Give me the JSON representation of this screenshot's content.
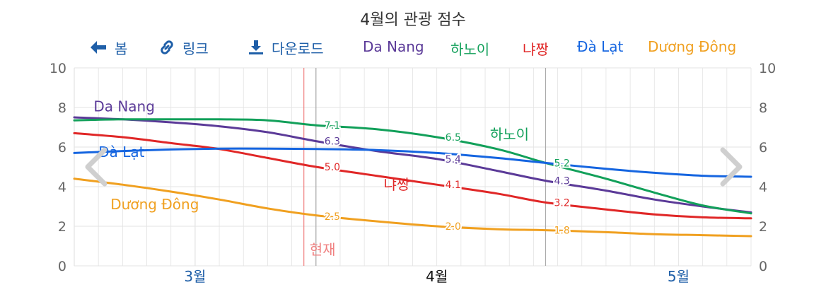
{
  "title": "4월의 관광 점수",
  "toolbar": {
    "back_label": "봄",
    "link_label": "링크",
    "download_label": "다운로드"
  },
  "now_label": "현재",
  "colors": {
    "toolbar": "#1f5fa8",
    "grid": "#e3e3e3",
    "now_line": "#f08080",
    "marker_line": "#aaaaaa"
  },
  "chart_data": {
    "type": "line",
    "title": "4월의 관광 점수",
    "xlabel": "",
    "ylabel": "",
    "ylim": [
      0,
      10
    ],
    "yticks": [
      0,
      2,
      4,
      6,
      8,
      10
    ],
    "x_tick_labels": [
      "3월",
      "4월",
      "5월"
    ],
    "x_tick_positions": [
      3.5,
      4.5,
      5.5
    ],
    "xlim": [
      3.0,
      5.8
    ],
    "now_x": 3.95,
    "marker_x": [
      4.0,
      4.95
    ],
    "grid": true,
    "legend_position": "top",
    "series": [
      {
        "name": "Da Nang",
        "color": "#5b3a98",
        "label_x": 3.08,
        "label_y": 7.8,
        "x": [
          3.0,
          3.2,
          3.4,
          3.6,
          3.8,
          4.0,
          4.25,
          4.5,
          4.75,
          4.95,
          5.2,
          5.4,
          5.6,
          5.8
        ],
        "y": [
          7.5,
          7.4,
          7.25,
          7.05,
          6.75,
          6.3,
          5.8,
          5.4,
          4.8,
          4.3,
          3.8,
          3.35,
          3.0,
          2.7
        ]
      },
      {
        "name": "하노이",
        "color": "#12a05a",
        "label_x": 4.72,
        "label_y": 6.4,
        "x": [
          3.0,
          3.2,
          3.4,
          3.6,
          3.8,
          4.0,
          4.25,
          4.5,
          4.75,
          4.95,
          5.2,
          5.4,
          5.6,
          5.8
        ],
        "y": [
          7.35,
          7.4,
          7.4,
          7.4,
          7.35,
          7.1,
          6.9,
          6.5,
          5.9,
          5.2,
          4.4,
          3.7,
          3.05,
          2.65
        ]
      },
      {
        "name": "냐짱",
        "color": "#e02727",
        "label_x": 4.28,
        "label_y": 3.85,
        "x": [
          3.0,
          3.2,
          3.4,
          3.6,
          3.8,
          4.0,
          4.25,
          4.5,
          4.75,
          4.95,
          5.2,
          5.4,
          5.6,
          5.8
        ],
        "y": [
          6.7,
          6.5,
          6.2,
          5.9,
          5.45,
          5.0,
          4.55,
          4.1,
          3.65,
          3.2,
          2.85,
          2.6,
          2.45,
          2.4
        ]
      },
      {
        "name": "Đà Lạt",
        "color": "#1565e0",
        "label_x": 3.1,
        "label_y": 5.5,
        "x": [
          3.0,
          3.2,
          3.4,
          3.6,
          3.8,
          4.0,
          4.25,
          4.5,
          4.75,
          4.95,
          5.2,
          5.4,
          5.6,
          5.8
        ],
        "y": [
          5.7,
          5.8,
          5.88,
          5.92,
          5.92,
          5.9,
          5.85,
          5.7,
          5.45,
          5.2,
          4.9,
          4.7,
          4.55,
          4.5
        ]
      },
      {
        "name": "Dương Đông",
        "color": "#f0a020",
        "label_x": 3.15,
        "label_y": 2.85,
        "x": [
          3.0,
          3.2,
          3.4,
          3.6,
          3.8,
          4.0,
          4.25,
          4.5,
          4.75,
          4.95,
          5.2,
          5.4,
          5.6,
          5.8
        ],
        "y": [
          4.4,
          4.1,
          3.75,
          3.35,
          2.9,
          2.55,
          2.25,
          2.0,
          1.85,
          1.8,
          1.7,
          1.6,
          1.55,
          1.5
        ]
      }
    ],
    "data_labels": [
      {
        "series": "하노이",
        "x": 4.0,
        "y": 7.1,
        "text": "7.1"
      },
      {
        "series": "Da Nang",
        "x": 4.0,
        "y": 6.3,
        "text": "6.3"
      },
      {
        "series": "냐짱",
        "x": 4.0,
        "y": 5.0,
        "text": "5.0"
      },
      {
        "series": "Dương Đông",
        "x": 4.0,
        "y": 2.5,
        "text": "2.5"
      },
      {
        "series": "하노이",
        "x": 4.5,
        "y": 6.5,
        "text": "6.5"
      },
      {
        "series": "Da Nang",
        "x": 4.5,
        "y": 5.4,
        "text": "5.4"
      },
      {
        "series": "냐짱",
        "x": 4.5,
        "y": 4.1,
        "text": "4.1"
      },
      {
        "series": "Dương Đông",
        "x": 4.5,
        "y": 2.0,
        "text": "2.0"
      },
      {
        "series": "하노이",
        "x": 4.95,
        "y": 5.2,
        "text": "5.2"
      },
      {
        "series": "Da Nang",
        "x": 4.95,
        "y": 4.3,
        "text": "4.3"
      },
      {
        "series": "냐짱",
        "x": 4.95,
        "y": 3.2,
        "text": "3.2"
      },
      {
        "series": "Dương Đông",
        "x": 4.95,
        "y": 1.8,
        "text": "1.8"
      }
    ]
  }
}
